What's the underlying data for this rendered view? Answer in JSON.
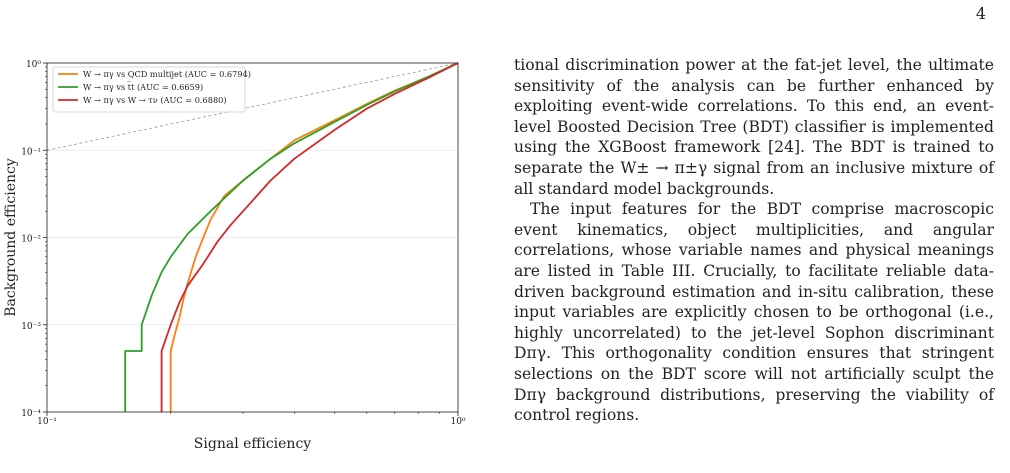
{
  "page": {
    "number": "4"
  },
  "chart_data": {
    "type": "line",
    "title": "",
    "xlabel": "Signal efficiency",
    "ylabel": "Background efficiency",
    "xscale": "log",
    "yscale": "log",
    "xlim": [
      0.1,
      1.0
    ],
    "ylim": [
      0.0001,
      1.0
    ],
    "xticks": [
      {
        "value": 0.1,
        "label": "10⁻¹"
      },
      {
        "value": 1.0,
        "label": "10⁰"
      }
    ],
    "yticks": [
      {
        "value": 1.0,
        "label": "10⁰"
      },
      {
        "value": 0.1,
        "label": "10⁻¹"
      },
      {
        "value": 0.01,
        "label": "10⁻²"
      },
      {
        "value": 0.001,
        "label": "10⁻³"
      },
      {
        "value": 0.0001,
        "label": "10⁻⁴"
      }
    ],
    "grid": true,
    "legend_position": "top-left",
    "series": [
      {
        "name": "W → πγ vs QCD multijet  (AUC = 0.6794)",
        "color": "#ff7f0e",
        "x": [
          0.2,
          0.2,
          0.205,
          0.21,
          0.215,
          0.22,
          0.23,
          0.24,
          0.25,
          0.27,
          0.3,
          0.35,
          0.4,
          0.5,
          0.6,
          0.7,
          0.85,
          1.0
        ],
        "y": [
          0.0001,
          0.0005,
          0.0008,
          0.0012,
          0.002,
          0.003,
          0.006,
          0.01,
          0.016,
          0.03,
          0.045,
          0.08,
          0.13,
          0.22,
          0.34,
          0.48,
          0.7,
          1.0
        ]
      },
      {
        "name": "W → πγ vs t̅t  (AUC = 0.6659)",
        "color": "#2ca02c",
        "x": [
          0.155,
          0.155,
          0.17,
          0.17,
          0.18,
          0.19,
          0.2,
          0.22,
          0.25,
          0.3,
          0.35,
          0.4,
          0.5,
          0.6,
          0.7,
          0.85,
          1.0
        ],
        "y": [
          0.0001,
          0.0005,
          0.0005,
          0.001,
          0.0022,
          0.004,
          0.006,
          0.011,
          0.02,
          0.045,
          0.08,
          0.12,
          0.21,
          0.33,
          0.47,
          0.7,
          1.0
        ]
      },
      {
        "name": "W → πγ vs W → τν  (AUC = 0.6880)",
        "color": "#d62728",
        "x": [
          0.19,
          0.19,
          0.2,
          0.21,
          0.22,
          0.24,
          0.26,
          0.28,
          0.3,
          0.35,
          0.4,
          0.5,
          0.6,
          0.7,
          0.85,
          1.0
        ],
        "y": [
          0.0001,
          0.0005,
          0.001,
          0.0018,
          0.0028,
          0.005,
          0.009,
          0.014,
          0.02,
          0.045,
          0.08,
          0.17,
          0.3,
          0.44,
          0.68,
          1.0
        ]
      },
      {
        "name": "",
        "color": "#999999",
        "style": "dashed",
        "x": [
          0.1,
          1.0
        ],
        "y": [
          0.1,
          1.0
        ]
      }
    ]
  },
  "text": {
    "paragraphs": [
      "tional discrimination power at the fat-jet level, the ultimate sensitivity of the analysis can be further enhanced by exploiting event-wide correlations. To this end, an event-level Boosted Decision Tree (BDT) classifier is implemented using the XGBoost framework [24]. The BDT is trained to separate the W± → π±γ signal from an inclusive mixture of all standard model backgrounds.",
      "The input features for the BDT comprise macroscopic event kinematics, object multiplicities, and angular correlations, whose variable names and physical meanings are listed in Table III. Crucially, to facilitate reliable data-driven background estimation and in-situ calibration, these input variables are explicitly chosen to be orthogonal (i.e., highly uncorrelated) to the jet-level Sophon discriminant Dπγ. This orthogonality condition ensures that stringent selections on the BDT score will not artificially sculpt the Dπγ background distributions, preserving the viability of control regions."
    ]
  }
}
